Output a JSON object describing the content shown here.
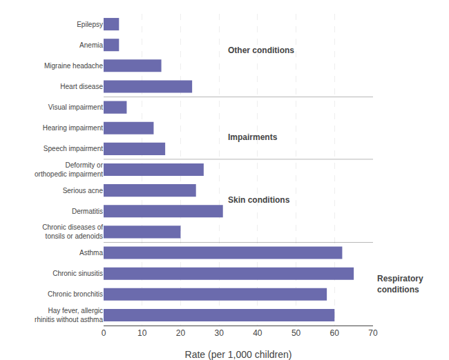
{
  "chart_data": {
    "type": "bar",
    "orientation": "horizontal",
    "categories": [
      "Hay fever, allergic\nrhinitis without asthma",
      "Chronic bronchitis",
      "Chronic sinusitis",
      "Asthma",
      "Chronic diseases of\ntonsils or adenoids",
      "Dermatitis",
      "Serious acne",
      "Deformity or\northopedic impairment",
      "Speech impairment",
      "Hearing impairment",
      "Visual impairment",
      "Heart disease",
      "Migraine headache",
      "Anemia",
      "Epilepsy"
    ],
    "values": [
      60,
      58,
      65,
      62,
      20,
      31,
      24,
      26,
      16,
      13,
      6,
      23,
      15,
      4,
      4
    ],
    "color": "#6B6BAD",
    "xlabel": "Rate (per 1,000 children)",
    "xlim": [
      0,
      70
    ],
    "xticks": [
      0,
      10,
      20,
      30,
      40,
      50,
      60,
      70
    ],
    "grid": true,
    "annotations": [
      "Other conditions",
      "Impairments",
      "Skin conditions",
      "Respiratory\nconditions"
    ]
  }
}
